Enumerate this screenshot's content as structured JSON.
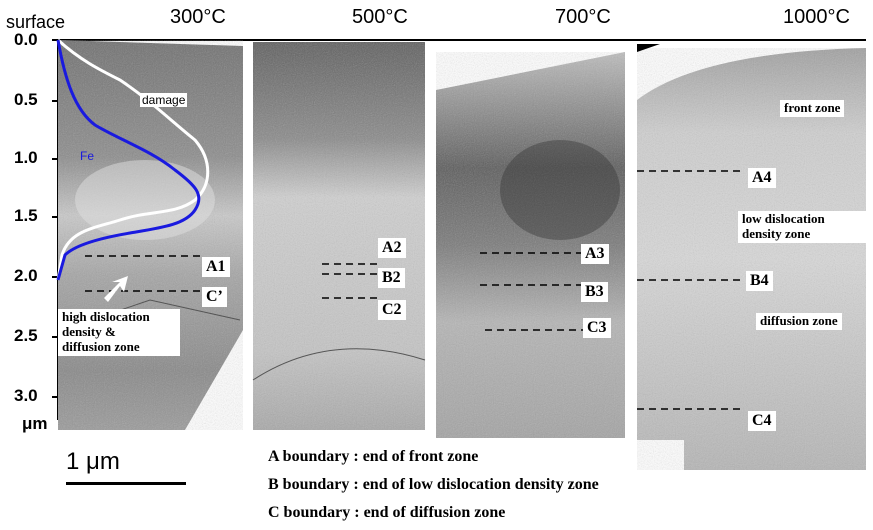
{
  "header": {
    "surface": "surface",
    "temperatures": [
      "300°C",
      "500°C",
      "700°C",
      "1000°C"
    ]
  },
  "axis": {
    "ticks": [
      "0.0",
      "0.5",
      "1.0",
      "1.5",
      "2.0",
      "2.5",
      "3.0"
    ],
    "unit": "μm"
  },
  "curves": {
    "damage": {
      "label": "damage",
      "color": "#ffffff"
    },
    "fe": {
      "label": "Fe",
      "color": "#1a1adf"
    }
  },
  "panel_300": {
    "boundaries": [
      "A1",
      "C’"
    ],
    "zone": [
      "high dislocation",
      "density &",
      "diffusion zone"
    ]
  },
  "panel_500": {
    "boundaries": [
      "A2",
      "B2",
      "C2"
    ]
  },
  "panel_700": {
    "boundaries": [
      "A3",
      "B3",
      "C3"
    ]
  },
  "panel_1000": {
    "boundaries": [
      "A4",
      "B4",
      "C4"
    ],
    "zones": {
      "front": "front zone",
      "low": [
        "low dislocation",
        "density zone"
      ],
      "diffusion": "diffusion zone"
    }
  },
  "scale_bar": "1 μm",
  "legend": [
    "A boundary : end of front zone",
    "B boundary : end of low dislocation density zone",
    "C boundary : end of diffusion zone"
  ]
}
